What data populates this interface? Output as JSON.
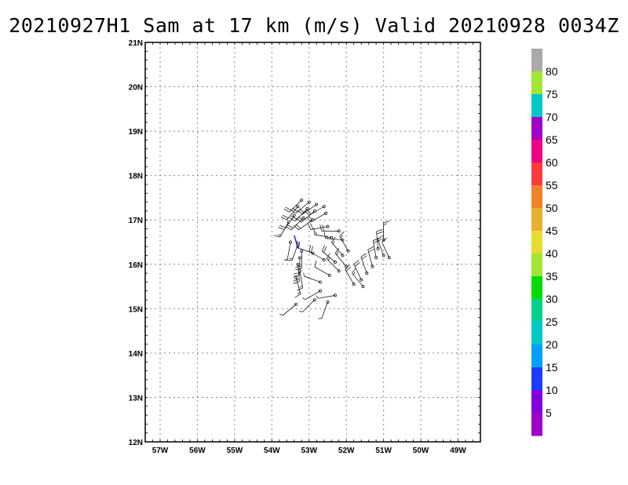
{
  "title": "20210927H1 Sam at 17 km (m/s) Valid 20210928 0034Z",
  "chart_data": {
    "type": "wind-barb-map",
    "x_ticks": [
      "57W",
      "56W",
      "55W",
      "54W",
      "53W",
      "52W",
      "51W",
      "50W",
      "49W"
    ],
    "x_values": [
      -57,
      -56,
      -55,
      -54,
      -53,
      -52,
      -51,
      -50,
      -49
    ],
    "y_ticks": [
      "12N",
      "13N",
      "14N",
      "15N",
      "16N",
      "17N",
      "18N",
      "19N",
      "20N",
      "21N"
    ],
    "y_values": [
      12,
      13,
      14,
      15,
      16,
      17,
      18,
      19,
      20,
      21
    ],
    "xlim": [
      -57.4,
      -48.4
    ],
    "ylim": [
      12,
      21
    ],
    "grid": true,
    "colorbar": {
      "labels": [
        "5",
        "10",
        "15",
        "20",
        "25",
        "30",
        "35",
        "40",
        "45",
        "50",
        "55",
        "60",
        "65",
        "70",
        "75",
        "80"
      ],
      "colors": [
        "#a000c8",
        "#8200dc",
        "#1e3cff",
        "#00a0ff",
        "#00c8c8",
        "#00d28c",
        "#00dc00",
        "#a0e632",
        "#e6dc32",
        "#e6af2d",
        "#f08228",
        "#fa3c3c",
        "#f00082",
        "#a000c8",
        "#00c8c8",
        "#a0e632",
        "#aaaaaa"
      ]
    },
    "observations": [
      {
        "lon": -53.2,
        "lat": 17.45,
        "dir": 225,
        "spd": 20
      },
      {
        "lon": -53.0,
        "lat": 17.4,
        "dir": 230,
        "spd": 20
      },
      {
        "lon": -52.8,
        "lat": 17.35,
        "dir": 235,
        "spd": 20
      },
      {
        "lon": -52.6,
        "lat": 17.3,
        "dir": 240,
        "spd": 20
      },
      {
        "lon": -53.3,
        "lat": 17.3,
        "dir": 220,
        "spd": 20
      },
      {
        "lon": -53.05,
        "lat": 17.25,
        "dir": 225,
        "spd": 20
      },
      {
        "lon": -52.85,
        "lat": 17.2,
        "dir": 230,
        "spd": 20
      },
      {
        "lon": -52.55,
        "lat": 17.15,
        "dir": 240,
        "spd": 20
      },
      {
        "lon": -53.4,
        "lat": 17.1,
        "dir": 215,
        "spd": 20
      },
      {
        "lon": -53.15,
        "lat": 17.05,
        "dir": 225,
        "spd": 20
      },
      {
        "lon": -52.9,
        "lat": 17.0,
        "dir": 235,
        "spd": 20
      },
      {
        "lon": -53.55,
        "lat": 16.95,
        "dir": 210,
        "spd": 15
      },
      {
        "lon": -52.5,
        "lat": 16.85,
        "dir": 260,
        "spd": 20
      },
      {
        "lon": -52.2,
        "lat": 16.75,
        "dir": 270,
        "spd": 20
      },
      {
        "lon": -52.4,
        "lat": 16.6,
        "dir": 280,
        "spd": 15
      },
      {
        "lon": -52.1,
        "lat": 16.55,
        "dir": 275,
        "spd": 15
      },
      {
        "lon": -53.5,
        "lat": 16.5,
        "dir": 190,
        "spd": 5
      },
      {
        "lon": -53.3,
        "lat": 16.45,
        "dir": 200,
        "spd": 15
      },
      {
        "lon": -53.2,
        "lat": 16.3,
        "dir": 180,
        "spd": 20
      },
      {
        "lon": -53.25,
        "lat": 16.15,
        "dir": 180,
        "spd": 20
      },
      {
        "lon": -53.3,
        "lat": 16.0,
        "dir": 175,
        "spd": 20
      },
      {
        "lon": -53.25,
        "lat": 15.85,
        "dir": 170,
        "spd": 15
      },
      {
        "lon": -53.35,
        "lat": 15.7,
        "dir": 165,
        "spd": 15
      },
      {
        "lon": -52.9,
        "lat": 16.25,
        "dir": 290,
        "spd": 20
      },
      {
        "lon": -52.6,
        "lat": 16.1,
        "dir": 300,
        "spd": 20
      },
      {
        "lon": -52.3,
        "lat": 16.05,
        "dir": 310,
        "spd": 20
      },
      {
        "lon": -52.1,
        "lat": 16.2,
        "dir": 320,
        "spd": 15
      },
      {
        "lon": -51.95,
        "lat": 16.3,
        "dir": 330,
        "spd": 15
      },
      {
        "lon": -52.0,
        "lat": 15.95,
        "dir": 320,
        "spd": 15
      },
      {
        "lon": -52.2,
        "lat": 15.85,
        "dir": 315,
        "spd": 15
      },
      {
        "lon": -52.45,
        "lat": 15.75,
        "dir": 300,
        "spd": 10
      },
      {
        "lon": -52.7,
        "lat": 15.6,
        "dir": 290,
        "spd": 5
      },
      {
        "lon": -51.8,
        "lat": 15.55,
        "dir": 330,
        "spd": 20
      },
      {
        "lon": -51.6,
        "lat": 15.65,
        "dir": 335,
        "spd": 20
      },
      {
        "lon": -51.45,
        "lat": 15.8,
        "dir": 340,
        "spd": 20
      },
      {
        "lon": -51.3,
        "lat": 15.95,
        "dir": 345,
        "spd": 20
      },
      {
        "lon": -51.2,
        "lat": 16.15,
        "dir": 350,
        "spd": 20
      },
      {
        "lon": -51.15,
        "lat": 16.35,
        "dir": 355,
        "spd": 20
      },
      {
        "lon": -51.0,
        "lat": 16.55,
        "dir": 0,
        "spd": 15
      },
      {
        "lon": -51.0,
        "lat": 16.2,
        "dir": 340,
        "spd": 15
      },
      {
        "lon": -50.85,
        "lat": 16.15,
        "dir": 335,
        "spd": 10
      },
      {
        "lon": -51.55,
        "lat": 15.5,
        "dir": 320,
        "spd": 15
      },
      {
        "lon": -52.7,
        "lat": 15.4,
        "dir": 240,
        "spd": 5
      },
      {
        "lon": -52.85,
        "lat": 15.2,
        "dir": 225,
        "spd": 5
      },
      {
        "lon": -53.35,
        "lat": 15.1,
        "dir": 230,
        "spd": 5
      },
      {
        "lon": -52.5,
        "lat": 15.15,
        "dir": 200,
        "spd": 5
      },
      {
        "lon": -52.3,
        "lat": 15.3,
        "dir": 260,
        "spd": 5
      }
    ]
  }
}
